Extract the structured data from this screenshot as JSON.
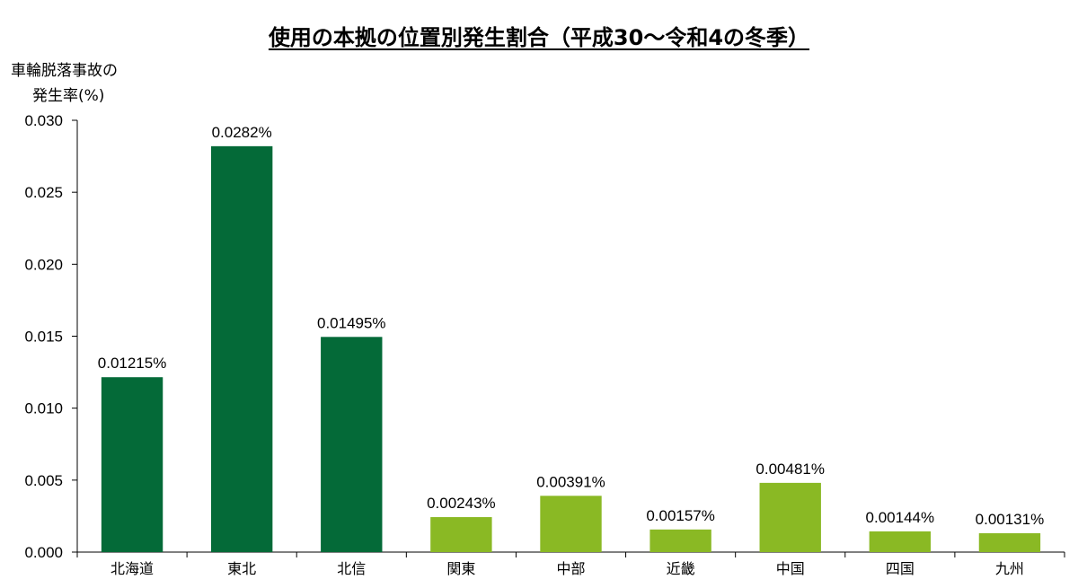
{
  "chart_data": {
    "type": "bar",
    "title": "使用の本拠の位置別発生割合（平成30～令和4の冬季）",
    "ylabel_lines": [
      "車輪脱落事故の",
      "発生率(%)"
    ],
    "xlabel": "",
    "categories": [
      "北海道",
      "東北",
      "北信",
      "関東",
      "中部",
      "近畿",
      "中国",
      "四国",
      "九州"
    ],
    "values": [
      0.01215,
      0.0282,
      0.01495,
      0.00243,
      0.00391,
      0.00157,
      0.00481,
      0.00144,
      0.00131
    ],
    "data_labels": [
      "0.01215%",
      "0.0282%",
      "0.01495%",
      "0.00243%",
      "0.00391%",
      "0.00157%",
      "0.00481%",
      "0.00144%",
      "0.00131%"
    ],
    "ylim": [
      0,
      0.03
    ],
    "yticks": [
      "0.000",
      "0.005",
      "0.010",
      "0.015",
      "0.020",
      "0.025",
      "0.030"
    ],
    "grid": false,
    "legend": "none",
    "colors": {
      "dark_green": "#046a38",
      "light_green": "#8ab924"
    },
    "bar_color_keys": [
      "dark_green",
      "dark_green",
      "dark_green",
      "light_green",
      "light_green",
      "light_green",
      "light_green",
      "light_green",
      "light_green"
    ]
  }
}
